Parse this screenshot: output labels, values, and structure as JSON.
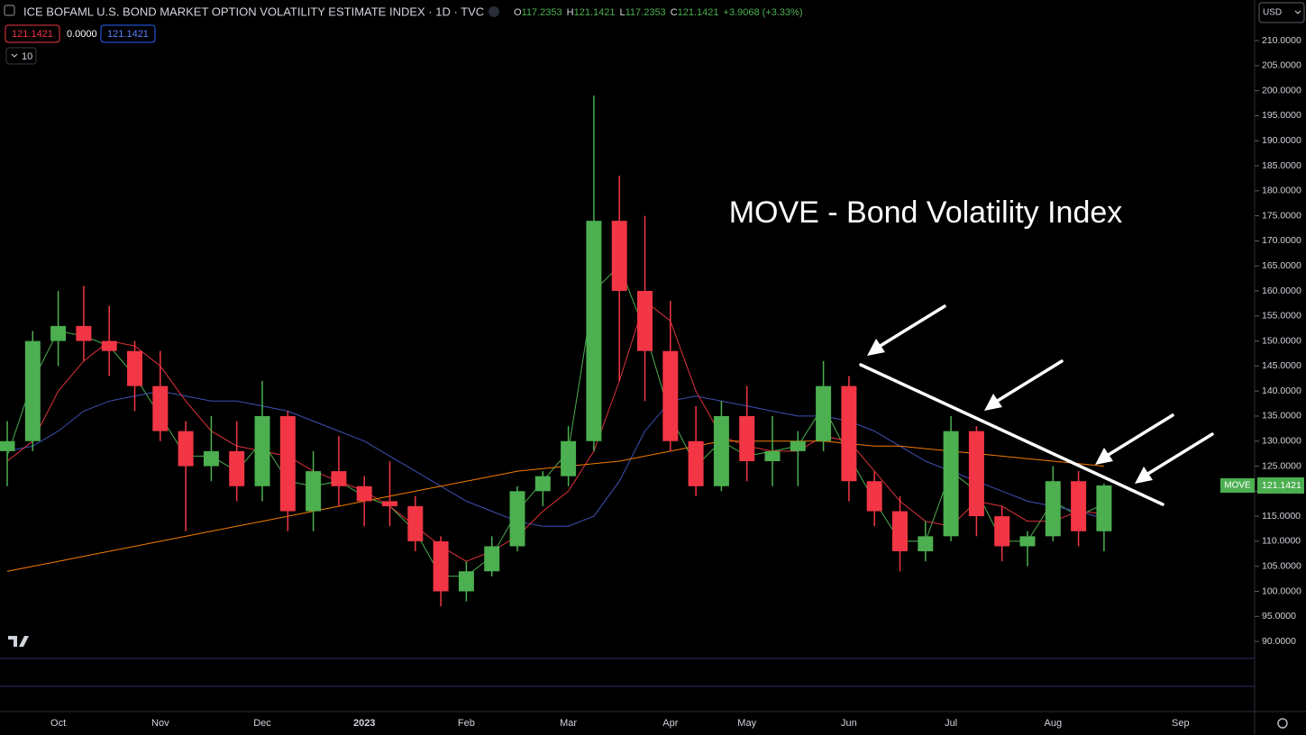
{
  "header": {
    "title": "ICE BOFAML U.S. BOND MARKET OPTION VOLATILITY ESTIMATE INDEX · 1D · TVC",
    "ohlc": [
      {
        "label": "O",
        "value": "117.2353"
      },
      {
        "label": "H",
        "value": "121.1421"
      },
      {
        "label": "L",
        "value": "117.2353"
      },
      {
        "label": "C",
        "value": "121.1421"
      }
    ],
    "change": "+3.9068 (+3.33%)",
    "badges": [
      "121.1421",
      "0.0000",
      "121.1421"
    ],
    "indicator_count": "10",
    "currency": "USD"
  },
  "chart_data": {
    "type": "candlestick",
    "annotation": "MOVE - Bond Volatility Index",
    "symbol_label": "MOVE",
    "last_price_label": "121.1421",
    "up_color": "#4caf50",
    "down_color": "#f23645",
    "categories": [
      null,
      null,
      "Oct",
      null,
      null,
      null,
      "Nov",
      null,
      null,
      null,
      "Dec",
      null,
      null,
      null,
      "2023",
      null,
      null,
      null,
      "Feb",
      null,
      null,
      null,
      "Mar",
      null,
      null,
      null,
      "Apr",
      null,
      null,
      "May",
      null,
      null,
      null,
      "Jun",
      null,
      null,
      null,
      "Jul",
      null,
      null,
      null,
      "Aug",
      null,
      null,
      null,
      null,
      "Sep"
    ],
    "open": [
      128,
      130,
      150,
      153,
      150,
      148,
      141,
      132,
      125,
      128,
      121,
      135,
      116,
      124,
      121,
      118,
      117,
      110,
      100,
      104,
      109,
      120,
      123,
      130,
      174,
      160,
      148,
      130,
      121,
      135,
      126,
      128,
      130,
      141,
      122,
      116,
      108,
      111,
      132,
      115,
      109,
      111,
      122,
      112,
      null,
      null,
      null
    ],
    "high": [
      134,
      152,
      160,
      161,
      157,
      150,
      148,
      134,
      135,
      134,
      142,
      136,
      128,
      131,
      123,
      126,
      119,
      111,
      106,
      111,
      121,
      124,
      133,
      199,
      183,
      175,
      158,
      137,
      138,
      141,
      135,
      132,
      146,
      143,
      124,
      119,
      114,
      135,
      133,
      117,
      112,
      125,
      124,
      121.5,
      null,
      null,
      null
    ],
    "low": [
      121,
      128,
      145,
      146,
      143,
      136,
      130,
      112,
      122,
      118,
      118,
      112,
      112,
      117,
      113,
      113,
      108,
      97,
      98,
      103,
      108,
      117,
      121,
      128,
      142,
      138,
      128,
      119,
      120,
      122,
      121,
      121,
      128,
      118,
      113,
      104,
      106,
      110,
      111,
      106,
      105,
      110,
      109,
      108,
      null,
      null,
      null
    ],
    "close": [
      130,
      150,
      153,
      150,
      148,
      141,
      132,
      125,
      128,
      121,
      135,
      116,
      124,
      121,
      118,
      117,
      110,
      100,
      104,
      109,
      120,
      123,
      130,
      174,
      160,
      148,
      130,
      121,
      135,
      126,
      128,
      130,
      141,
      122,
      116,
      108,
      111,
      132,
      115,
      109,
      111,
      122,
      112,
      121.1421,
      null,
      null,
      null
    ],
    "series": [
      {
        "color": "#4caf50",
        "values": [
          127,
          142,
          152,
          151,
          149,
          143,
          135,
          127,
          127,
          124,
          130,
          122,
          121,
          122,
          119,
          117,
          112,
          103,
          103,
          107,
          116,
          122,
          128,
          160,
          165,
          152,
          135,
          125,
          130,
          127,
          128,
          129,
          137,
          127,
          118,
          110,
          110,
          124,
          120,
          110,
          110,
          118,
          115,
          117.5,
          null,
          null,
          null
        ]
      },
      {
        "color": "#3f51b5",
        "values": [
          128,
          129,
          132,
          136,
          138,
          139,
          140,
          139,
          138,
          138,
          137,
          136,
          134,
          132,
          130,
          127,
          124,
          121,
          118,
          116,
          114,
          113,
          113,
          115,
          122,
          132,
          138,
          139,
          138,
          137,
          136,
          135,
          135,
          134,
          132,
          129,
          126,
          124,
          122,
          120,
          118,
          117,
          116,
          114.5,
          null,
          null,
          null
        ]
      },
      {
        "color": "#e0323c",
        "values": [
          126,
          130,
          140,
          146,
          150,
          149,
          145,
          138,
          132,
          129,
          128,
          127,
          124,
          122,
          120,
          117,
          113,
          109,
          106,
          108,
          111,
          116,
          120,
          128,
          142,
          158,
          154,
          140,
          131,
          129,
          128,
          128,
          131,
          130,
          124,
          118,
          114,
          113,
          118,
          117,
          114,
          114,
          116,
          115.5,
          null,
          null,
          null
        ]
      },
      {
        "color": "#f57c00",
        "values": [
          104,
          105,
          106,
          107,
          108,
          109,
          110,
          111,
          112,
          113,
          114,
          115,
          116,
          117,
          118,
          119,
          120,
          121,
          122,
          123,
          124,
          124.5,
          125,
          125.5,
          126,
          127,
          128,
          129,
          130,
          130,
          130,
          130,
          130,
          129.5,
          129,
          129,
          128.5,
          128,
          127.5,
          127,
          126.5,
          126,
          125.5,
          125,
          null,
          null,
          null
        ]
      }
    ],
    "ylim": [
      86.6,
      218.1
    ],
    "yticks": [
      {
        "value": 90,
        "label": "90.0000"
      },
      {
        "value": 95,
        "label": "95.0000"
      },
      {
        "value": 100,
        "label": "100.0000"
      },
      {
        "value": 105,
        "label": "105.0000"
      },
      {
        "value": 110,
        "label": "110.0000"
      },
      {
        "value": 115,
        "label": "115.0000"
      },
      {
        "value": 120,
        "label": "120.0000"
      },
      {
        "value": 125,
        "label": "125.0000"
      },
      {
        "value": 130,
        "label": "130.0000"
      },
      {
        "value": 135,
        "label": "135.0000"
      },
      {
        "value": 140,
        "label": "140.0000"
      },
      {
        "value": 145,
        "label": "145.0000"
      },
      {
        "value": 150,
        "label": "150.0000"
      },
      {
        "value": 155,
        "label": "155.0000"
      },
      {
        "value": 160,
        "label": "160.0000"
      },
      {
        "value": 165,
        "label": "165.0000"
      },
      {
        "value": 170,
        "label": "170.0000"
      },
      {
        "value": 175,
        "label": "175.0000"
      },
      {
        "value": 180,
        "label": "180.0000"
      },
      {
        "value": 185,
        "label": "185.0000"
      },
      {
        "value": 190,
        "label": "190.0000"
      },
      {
        "value": 195,
        "label": "195.0000"
      },
      {
        "value": 200,
        "label": "200.0000"
      },
      {
        "value": 205,
        "label": "205.0000"
      },
      {
        "value": 210,
        "label": "210.0000"
      }
    ],
    "grid": false
  }
}
